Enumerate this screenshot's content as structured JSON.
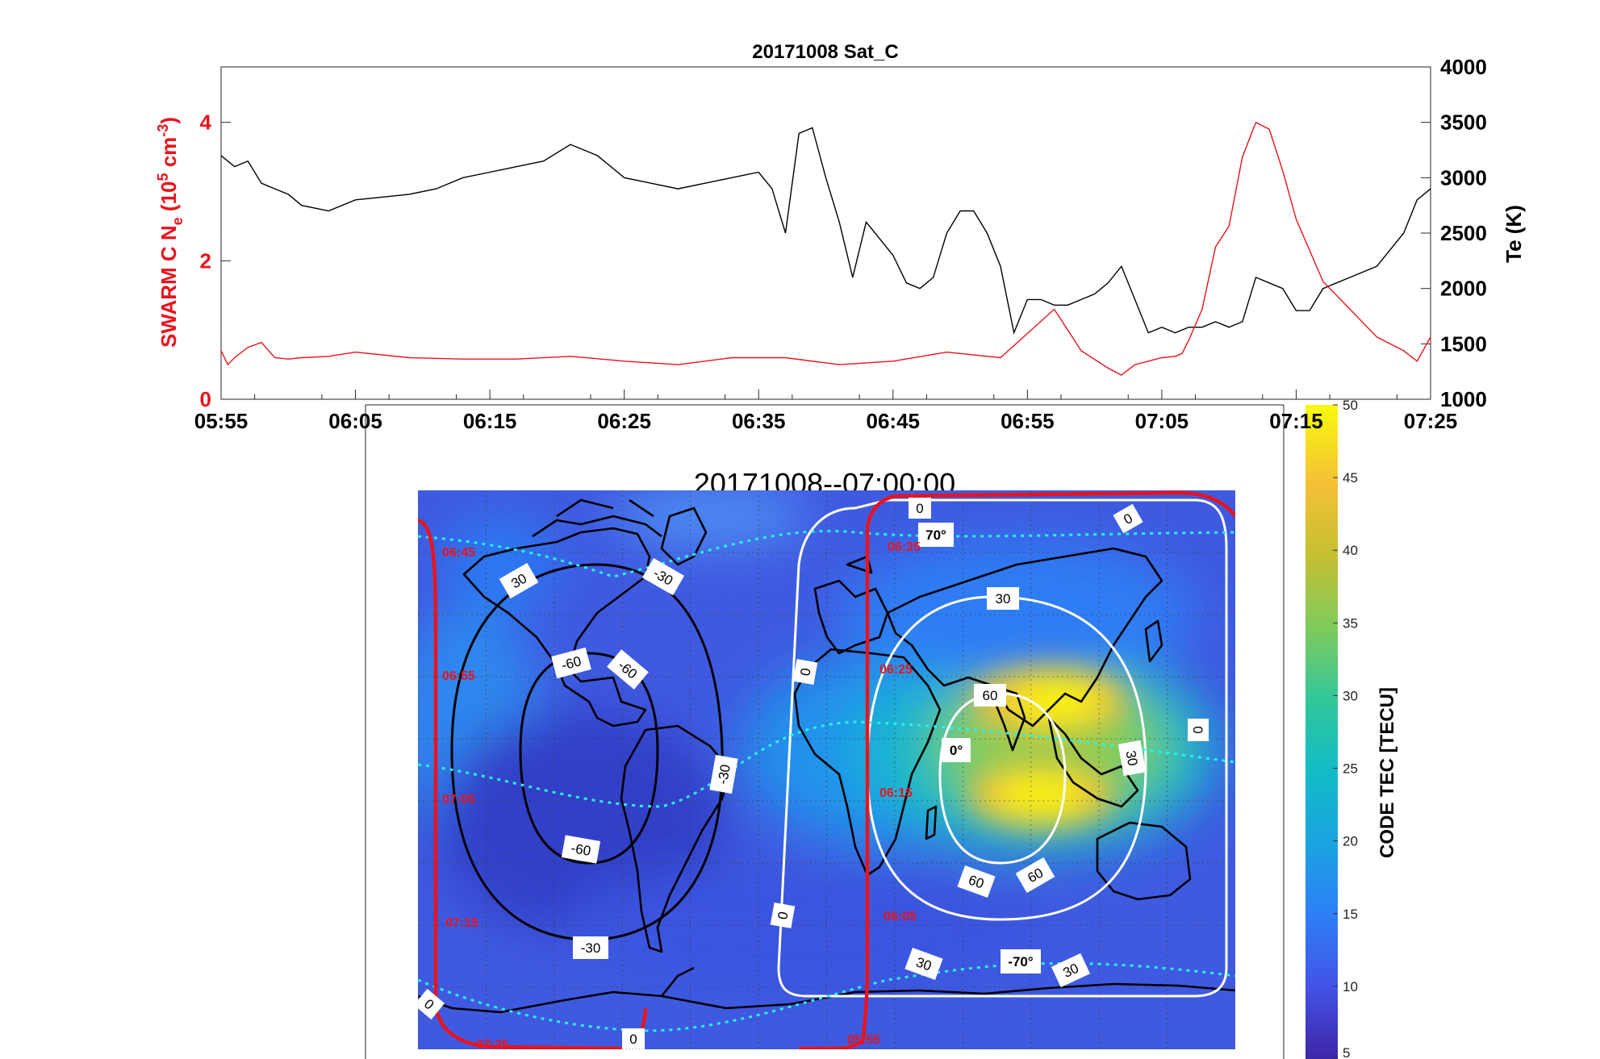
{
  "chart_data": [
    {
      "type": "line",
      "title": "20171008  Sat_C",
      "x_ticks": [
        "05:55",
        "06:05",
        "06:15",
        "06:25",
        "06:35",
        "06:45",
        "06:55",
        "07:05",
        "07:15",
        "07:25"
      ],
      "x_range_min": [
        0,
        90
      ],
      "left_axis": {
        "label_main": "SWARM C  N",
        "label_sub": "e",
        "label_tail": " (10",
        "label_sup5": "5",
        "label_unit": " cm",
        "label_sup": "-3",
        "label_close": ")",
        "ylim": [
          0,
          4.8
        ],
        "ticks": [
          0,
          2,
          4
        ],
        "color": "#e8141c"
      },
      "right_axis": {
        "label": "Te (K)",
        "ylim": [
          1000,
          4000
        ],
        "ticks": [
          1000,
          1500,
          2000,
          2500,
          3000,
          3500,
          4000
        ],
        "color": "#000000"
      },
      "series": [
        {
          "name": "Ne",
          "axis": "left",
          "color": "#e8141c",
          "x": [
            0,
            0.5,
            1,
            2,
            3,
            4,
            5,
            6,
            8,
            10,
            14,
            18,
            22,
            26,
            30,
            34,
            38,
            42,
            46,
            50,
            54,
            58,
            62,
            64,
            66,
            67,
            68,
            69,
            70,
            71,
            71.5,
            72,
            73,
            74,
            75,
            76,
            77,
            78,
            79,
            80,
            82,
            84,
            86,
            88,
            89,
            90
          ],
          "y": [
            0.7,
            0.5,
            0.6,
            0.75,
            0.82,
            0.6,
            0.58,
            0.6,
            0.62,
            0.68,
            0.6,
            0.58,
            0.58,
            0.62,
            0.55,
            0.5,
            0.6,
            0.6,
            0.5,
            0.55,
            0.68,
            0.6,
            1.3,
            0.7,
            0.45,
            0.35,
            0.5,
            0.55,
            0.6,
            0.62,
            0.66,
            0.85,
            1.3,
            2.2,
            2.5,
            3.5,
            4.0,
            3.9,
            3.3,
            2.6,
            1.7,
            1.3,
            0.9,
            0.7,
            0.55,
            0.9
          ]
        },
        {
          "name": "Te",
          "axis": "right",
          "color": "#000000",
          "x": [
            0,
            1,
            2,
            3,
            4,
            5,
            6,
            8,
            10,
            14,
            16,
            18,
            20,
            22,
            24,
            26,
            28,
            30,
            32,
            34,
            36,
            38,
            40,
            41,
            42,
            43,
            44,
            45,
            46,
            47,
            48,
            50,
            51,
            52,
            53,
            54,
            55,
            56,
            57,
            58,
            59,
            60,
            61,
            62,
            63,
            64,
            65,
            66,
            67,
            68,
            69,
            70,
            71,
            72,
            73,
            74,
            75,
            76,
            77,
            78,
            79,
            80,
            81,
            82,
            84,
            86,
            88,
            89,
            90
          ],
          "y": [
            3200,
            3100,
            3150,
            2950,
            2900,
            2850,
            2750,
            2700,
            2800,
            2850,
            2900,
            3000,
            3050,
            3100,
            3150,
            3300,
            3200,
            3000,
            2950,
            2900,
            2950,
            3000,
            3050,
            2900,
            2500,
            3400,
            3450,
            3000,
            2600,
            2100,
            2600,
            2300,
            2050,
            2000,
            2100,
            2500,
            2700,
            2700,
            2500,
            2200,
            1600,
            1900,
            1900,
            1850,
            1850,
            1900,
            1950,
            2050,
            2200,
            1900,
            1600,
            1650,
            1600,
            1650,
            1650,
            1700,
            1650,
            1700,
            2100,
            2050,
            2000,
            1800,
            1800,
            2000,
            2100,
            2200,
            2500,
            2800,
            2900
          ]
        }
      ]
    },
    {
      "type": "heatmap",
      "title": "20171008--07:00:00",
      "colorbar": {
        "label": "CODE TEC [TECU]",
        "vmin": 5,
        "vmax": 50,
        "ticks": [
          50,
          45,
          40,
          35,
          30,
          25,
          20,
          15,
          10,
          5
        ]
      },
      "track_times": [
        "06:45",
        "06:55",
        "07:05",
        "07:15",
        "07:25",
        "06:35",
        "06:25",
        "06:15",
        "06:05",
        "05:55"
      ],
      "contour_labels_black": [
        "30",
        "-60",
        "-60",
        "-30",
        "-60",
        "-30",
        "-30"
      ],
      "contour_labels_white": [
        "0",
        "0",
        "30",
        "60",
        "0",
        "30",
        "60",
        "60",
        "30",
        "30",
        "0",
        "0",
        "0",
        "0"
      ],
      "latitude_labels": [
        "70°",
        "0°",
        "-70°"
      ]
    }
  ]
}
